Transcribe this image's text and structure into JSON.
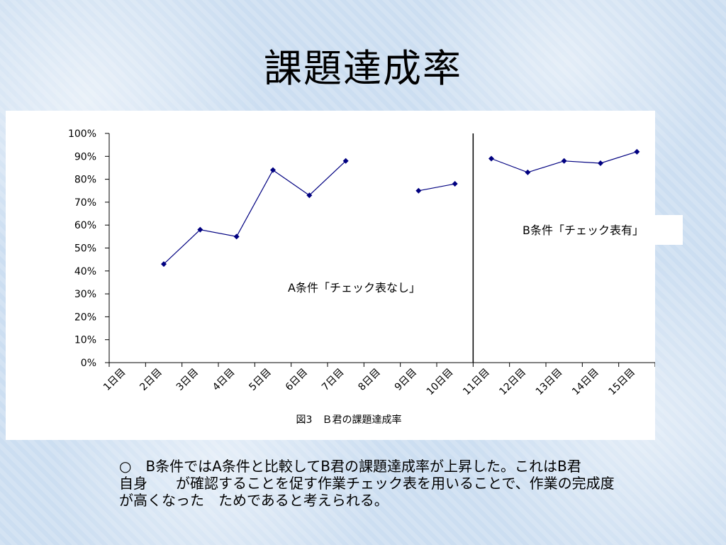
{
  "slide": {
    "title": "課題達成率",
    "accent_color": "#000080"
  },
  "chart_data": {
    "type": "line",
    "title": "図3　Ｂ君の課題達成率",
    "xlabel": "",
    "ylabel": "",
    "categories": [
      "1日目",
      "2日目",
      "3日目",
      "4日目",
      "5日目",
      "6日目",
      "7日目",
      "8日目",
      "9日目",
      "10日目",
      "11日目",
      "12日目",
      "13日目",
      "14日目",
      "15日目"
    ],
    "y_tick_labels": [
      "0%",
      "10%",
      "20%",
      "30%",
      "40%",
      "50%",
      "60%",
      "70%",
      "80%",
      "90%",
      "100%"
    ],
    "ylim": [
      0,
      1
    ],
    "grid": false,
    "series": [
      {
        "segments": [
          [
            [
              2,
              0.43
            ],
            [
              3,
              0.58
            ],
            [
              4,
              0.55
            ],
            [
              5,
              0.84
            ],
            [
              6,
              0.73
            ],
            [
              7,
              0.88
            ]
          ],
          [
            [
              9,
              0.75
            ],
            [
              10,
              0.78
            ]
          ],
          [
            [
              11,
              0.89
            ],
            [
              12,
              0.83
            ],
            [
              13,
              0.88
            ],
            [
              14,
              0.87
            ],
            [
              15,
              0.92
            ]
          ]
        ],
        "color": "#000080"
      }
    ],
    "divider_after_category": 10,
    "annotations": {
      "condition_a": "A条件「チェック表なし」",
      "condition_b": "B条件「チェック表有」"
    }
  },
  "body": {
    "line1": "○　B条件ではA条件と比較してB君の課題達成率が上昇した。これはB君",
    "line2": "自身　　が確認することを促す作業チェック表を用いることで、作業の完成度",
    "line3": "が高くなった　ためであると考えられる。"
  }
}
